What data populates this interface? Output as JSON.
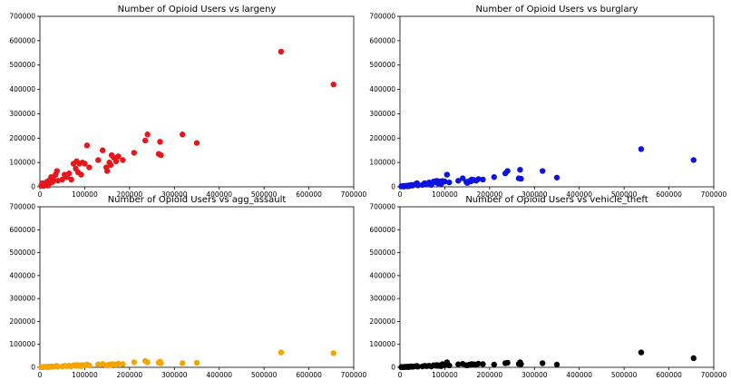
{
  "chart_data": [
    {
      "type": "scatter",
      "title": "Number of Opioid Users vs largeny",
      "xlabel": "",
      "ylabel": "",
      "xlim": [
        0,
        700000
      ],
      "ylim": [
        0,
        700000
      ],
      "xticks": [
        "0",
        "100000",
        "200000",
        "300000",
        "400000",
        "500000",
        "600000",
        "700000"
      ],
      "yticks": [
        "0",
        "100000",
        "200000",
        "300000",
        "400000",
        "500000",
        "600000",
        "700000"
      ],
      "color": "#e8161b",
      "grid": false,
      "x": [
        3000,
        5000,
        8000,
        10000,
        12000,
        15000,
        18000,
        20000,
        22000,
        25000,
        28000,
        30000,
        35000,
        38000,
        40000,
        50000,
        55000,
        60000,
        65000,
        70000,
        75000,
        80000,
        82000,
        85000,
        88000,
        92000,
        95000,
        100000,
        105000,
        110000,
        130000,
        140000,
        148000,
        150000,
        155000,
        158000,
        160000,
        165000,
        170000,
        175000,
        185000,
        210000,
        235000,
        240000,
        265000,
        268000,
        270000,
        318000,
        350000,
        538000,
        655000
      ],
      "y": [
        5000,
        15000,
        3000,
        10000,
        8000,
        20000,
        5000,
        25000,
        15000,
        40000,
        20000,
        30000,
        50000,
        65000,
        25000,
        30000,
        50000,
        40000,
        55000,
        30000,
        95000,
        75000,
        105000,
        60000,
        95000,
        50000,
        100000,
        95000,
        170000,
        80000,
        110000,
        150000,
        80000,
        65000,
        100000,
        90000,
        130000,
        120000,
        105000,
        125000,
        110000,
        140000,
        190000,
        215000,
        135000,
        185000,
        130000,
        215000,
        180000,
        555000,
        420000
      ]
    },
    {
      "type": "scatter",
      "title": "Number of Opioid Users vs burglary",
      "xlabel": "",
      "ylabel": "",
      "xlim": [
        0,
        700000
      ],
      "ylim": [
        0,
        700000
      ],
      "xticks": [
        "0",
        "100000",
        "200000",
        "300000",
        "400000",
        "500000",
        "600000",
        "700000"
      ],
      "yticks": [
        "0",
        "100000",
        "200000",
        "300000",
        "400000",
        "500000",
        "600000",
        "700000"
      ],
      "color": "#0f13e0",
      "grid": false,
      "x": [
        3000,
        5000,
        8000,
        10000,
        12000,
        15000,
        18000,
        20000,
        22000,
        25000,
        28000,
        30000,
        35000,
        38000,
        40000,
        50000,
        55000,
        60000,
        65000,
        70000,
        75000,
        80000,
        82000,
        85000,
        88000,
        92000,
        95000,
        100000,
        105000,
        110000,
        130000,
        140000,
        148000,
        150000,
        155000,
        158000,
        160000,
        165000,
        170000,
        175000,
        185000,
        210000,
        235000,
        240000,
        265000,
        268000,
        270000,
        318000,
        350000,
        538000,
        655000
      ],
      "y": [
        2000,
        3000,
        1000,
        4000,
        3000,
        5000,
        2000,
        6000,
        4000,
        8000,
        5000,
        7000,
        12000,
        15000,
        6000,
        8000,
        15000,
        10000,
        18000,
        8000,
        22000,
        18000,
        25000,
        14000,
        22000,
        12000,
        24000,
        22000,
        50000,
        18000,
        25000,
        35000,
        20000,
        16000,
        24000,
        22000,
        30000,
        28000,
        25000,
        32000,
        30000,
        40000,
        55000,
        65000,
        35000,
        70000,
        33000,
        65000,
        38000,
        155000,
        110000
      ]
    },
    {
      "type": "scatter",
      "title": "Number of Opioid Users vs agg_assault",
      "xlabel": "",
      "ylabel": "",
      "xlim": [
        0,
        700000
      ],
      "ylim": [
        0,
        700000
      ],
      "xticks": [
        "0",
        "100000",
        "200000",
        "300000",
        "400000",
        "500000",
        "600000",
        "700000"
      ],
      "yticks": [
        "0",
        "100000",
        "200000",
        "300000",
        "400000",
        "500000",
        "600000",
        "700000"
      ],
      "color": "#f5a500",
      "grid": false,
      "x": [
        3000,
        5000,
        8000,
        10000,
        12000,
        15000,
        18000,
        20000,
        22000,
        25000,
        28000,
        30000,
        35000,
        38000,
        40000,
        50000,
        55000,
        60000,
        65000,
        70000,
        75000,
        80000,
        82000,
        85000,
        88000,
        92000,
        95000,
        100000,
        105000,
        110000,
        130000,
        140000,
        148000,
        150000,
        155000,
        158000,
        160000,
        165000,
        170000,
        175000,
        185000,
        210000,
        235000,
        240000,
        265000,
        268000,
        270000,
        318000,
        350000,
        538000,
        655000
      ],
      "y": [
        1000,
        1500,
        800,
        2000,
        1500,
        2500,
        1000,
        3000,
        2000,
        4000,
        2500,
        3500,
        5000,
        6000,
        3000,
        4000,
        6500,
        5000,
        7000,
        4000,
        9000,
        7000,
        10000,
        6000,
        9000,
        5000,
        10000,
        9000,
        12000,
        8000,
        13000,
        15000,
        9000,
        8000,
        12000,
        11000,
        14000,
        13000,
        12000,
        16000,
        14000,
        22000,
        28000,
        22000,
        20000,
        25000,
        18000,
        18000,
        20000,
        65000,
        62000
      ]
    },
    {
      "type": "scatter",
      "title": "Number of Opioid Users vs vehicle_theft",
      "xlabel": "",
      "ylabel": "",
      "xlim": [
        0,
        700000
      ],
      "ylim": [
        0,
        700000
      ],
      "xticks": [
        "0",
        "100000",
        "200000",
        "300000",
        "400000",
        "500000",
        "600000",
        "700000"
      ],
      "yticks": [
        "0",
        "100000",
        "200000",
        "300000",
        "400000",
        "500000",
        "600000",
        "700000"
      ],
      "color": "#000000",
      "grid": false,
      "x": [
        3000,
        5000,
        8000,
        10000,
        12000,
        15000,
        18000,
        20000,
        22000,
        25000,
        28000,
        30000,
        35000,
        38000,
        40000,
        50000,
        55000,
        60000,
        65000,
        70000,
        75000,
        80000,
        82000,
        85000,
        88000,
        92000,
        95000,
        100000,
        105000,
        110000,
        130000,
        140000,
        148000,
        150000,
        155000,
        158000,
        160000,
        165000,
        170000,
        175000,
        185000,
        210000,
        235000,
        240000,
        265000,
        268000,
        270000,
        318000,
        350000,
        538000,
        655000
      ],
      "y": [
        1000,
        1500,
        800,
        2000,
        1500,
        2500,
        1000,
        3000,
        2000,
        4000,
        2500,
        3500,
        5000,
        6000,
        3000,
        4000,
        6500,
        5000,
        7000,
        4000,
        9000,
        7000,
        10000,
        6000,
        9000,
        5000,
        14000,
        9000,
        22000,
        8000,
        13000,
        15000,
        9000,
        8000,
        12000,
        11000,
        14000,
        13000,
        12000,
        16000,
        14000,
        12000,
        18000,
        20000,
        15000,
        22000,
        14000,
        18000,
        12000,
        65000,
        40000
      ]
    }
  ]
}
